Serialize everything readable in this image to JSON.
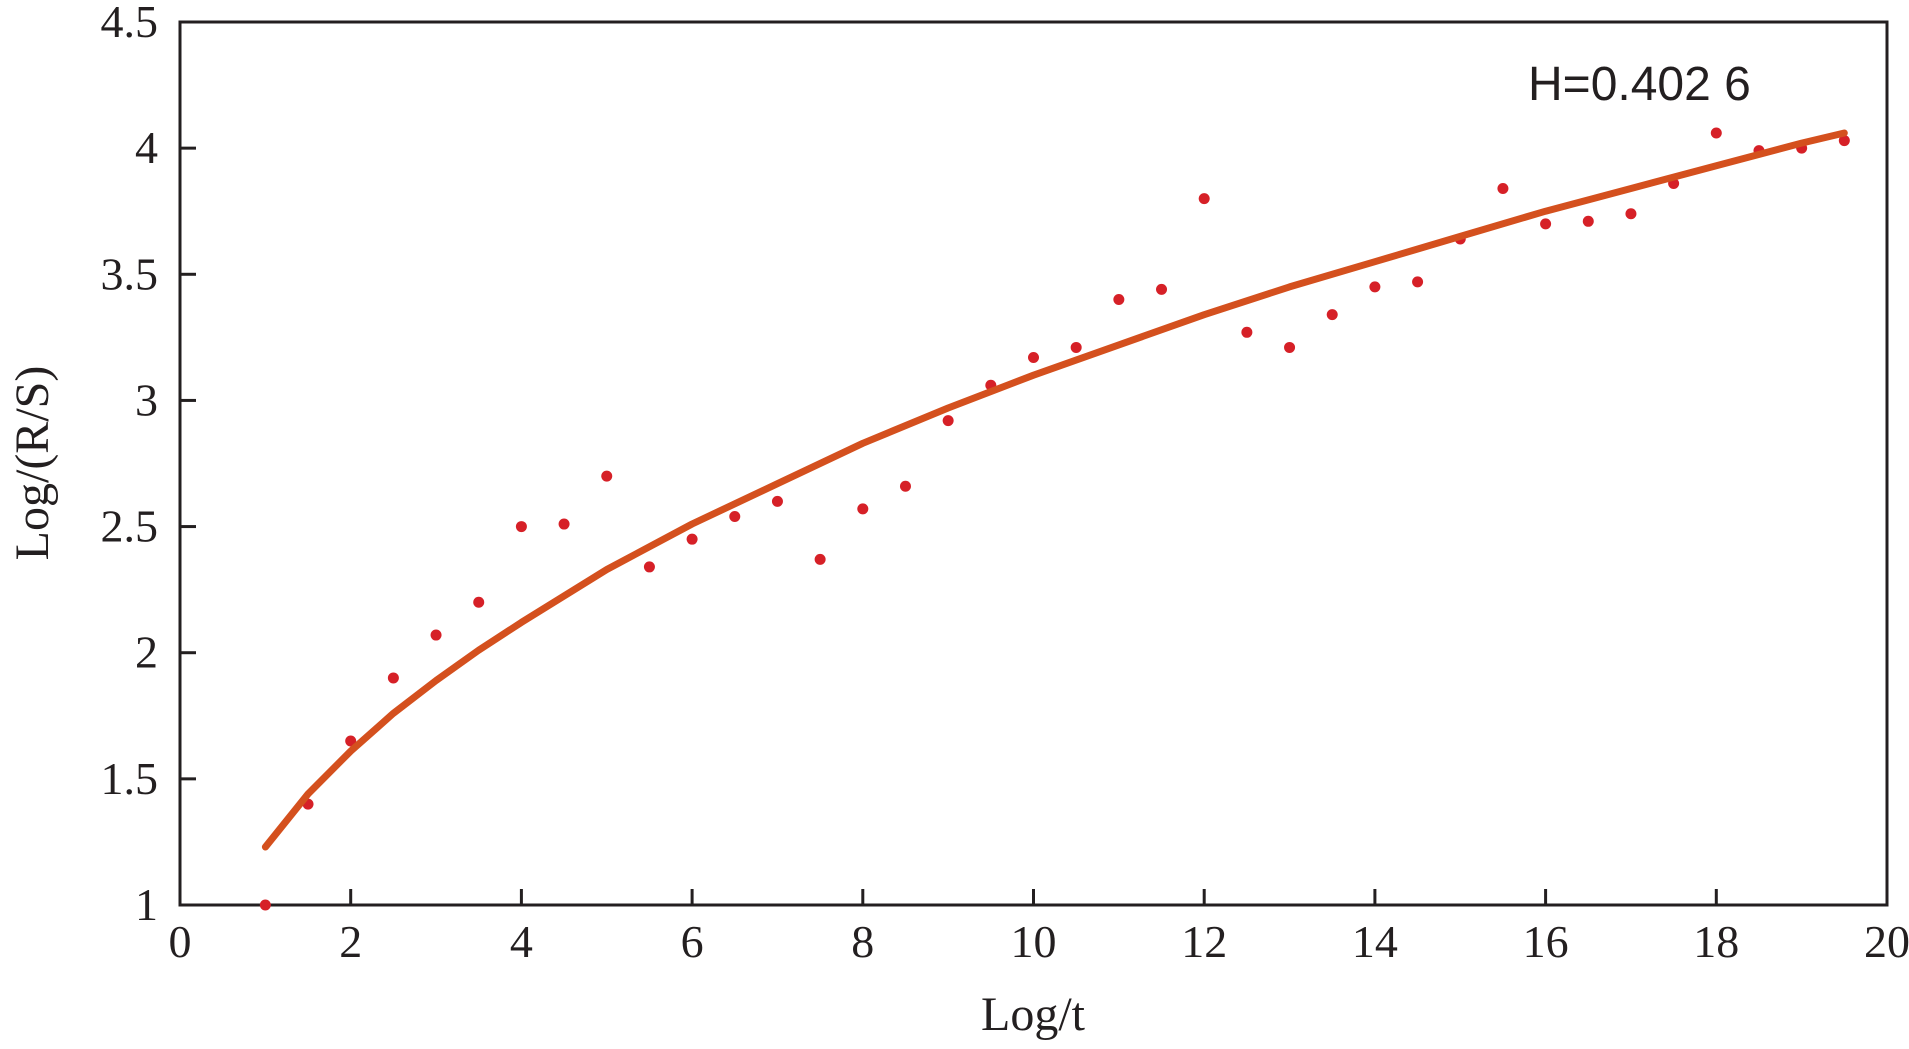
{
  "chart_data": {
    "type": "scatter",
    "xlabel": "Log/t",
    "ylabel": "Log/(R/S)",
    "xlim": [
      0,
      20
    ],
    "ylim": [
      1,
      4.5
    ],
    "xticks": [
      "0",
      "2",
      "4",
      "6",
      "8",
      "10",
      "12",
      "14",
      "16",
      "18",
      "20"
    ],
    "yticks": [
      "1",
      "1.5",
      "2",
      "2.5",
      "3",
      "3.5",
      "4",
      "4.5"
    ],
    "annotation": "H=0.402 6",
    "grid": false,
    "colors": {
      "points": "#d62027",
      "fit": "#d4501e",
      "axis": "#231f20"
    },
    "series": [
      {
        "kind": "points",
        "x": [
          1,
          1.5,
          2,
          2.5,
          3,
          3.5,
          4,
          4.5,
          5,
          5.5,
          6,
          6.5,
          7,
          7.5,
          8,
          8.5,
          9,
          9.5,
          10,
          10.5,
          11,
          11.5,
          12,
          12.5,
          13,
          13.5,
          14,
          14.5,
          15,
          15.5,
          16,
          16.5,
          17,
          17.5,
          18,
          18.5,
          19,
          19.5
        ],
        "y": [
          1.0,
          1.4,
          1.65,
          1.9,
          2.07,
          2.2,
          2.5,
          2.51,
          2.7,
          2.34,
          2.45,
          2.54,
          2.6,
          2.37,
          2.57,
          2.66,
          2.92,
          3.06,
          3.17,
          3.21,
          3.4,
          3.44,
          3.8,
          3.27,
          3.21,
          3.34,
          3.45,
          3.47,
          3.64,
          3.84,
          3.7,
          3.71,
          3.74,
          3.86,
          4.06,
          3.99,
          4.0,
          4.03
        ]
      },
      {
        "kind": "fit",
        "x": [
          1,
          1.5,
          2,
          2.5,
          3,
          3.5,
          4,
          5,
          6,
          7,
          8,
          9,
          10,
          11,
          12,
          13,
          14,
          15,
          16,
          17,
          18,
          19,
          19.5
        ],
        "y": [
          1.23,
          1.44,
          1.61,
          1.76,
          1.89,
          2.01,
          2.12,
          2.33,
          2.51,
          2.67,
          2.83,
          2.97,
          3.1,
          3.22,
          3.34,
          3.45,
          3.55,
          3.65,
          3.75,
          3.84,
          3.93,
          4.02,
          4.06
        ]
      }
    ]
  }
}
